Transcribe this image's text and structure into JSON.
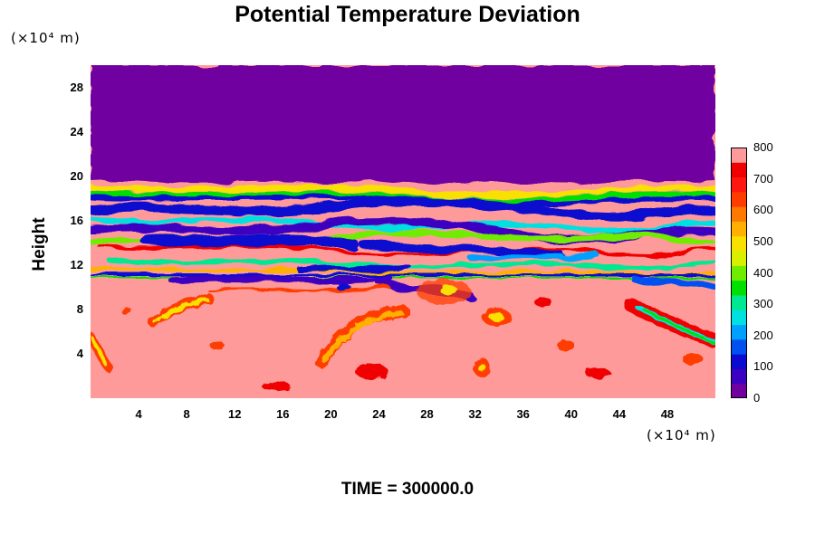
{
  "chart_data": {
    "type": "heatmap",
    "title": "Potential Temperature Deviation",
    "xlabel": "",
    "ylabel": "Height",
    "x_unit_label": "(×10⁴ m)",
    "y_unit_label": "(×10⁴ m)",
    "xlim": [
      0,
      52
    ],
    "ylim": [
      0,
      30
    ],
    "x_ticks": [
      "4",
      "8",
      "12",
      "16",
      "20",
      "24",
      "28",
      "32",
      "36",
      "40",
      "44",
      "48"
    ],
    "y_ticks": [
      "4",
      "8",
      "12",
      "16",
      "20",
      "24",
      "28"
    ],
    "colorbar": {
      "range": [
        0,
        800
      ],
      "tick_labels": [
        "0",
        "100",
        "200",
        "300",
        "400",
        "500",
        "600",
        "700",
        "800"
      ],
      "colors": [
        "#7000a0",
        "#3c00c0",
        "#0a0ad0",
        "#0050f0",
        "#00a0ff",
        "#00e0e0",
        "#00e890",
        "#00e000",
        "#70ec00",
        "#d8f000",
        "#f8e000",
        "#ffb000",
        "#ff7800",
        "#ff3c00",
        "#ff1810",
        "#f00000",
        "#ff9a9a"
      ]
    },
    "field_description": {
      "top_layer": {
        "y_range": [
          20,
          30
        ],
        "value": 0
      },
      "turbulent_band": {
        "y_range": [
          10,
          20
        ]
      },
      "lower_region_background_value": 800
    },
    "footer": "TIME = 300000.0"
  },
  "colors": {
    "background": "#ffffff",
    "text": "#000000"
  }
}
